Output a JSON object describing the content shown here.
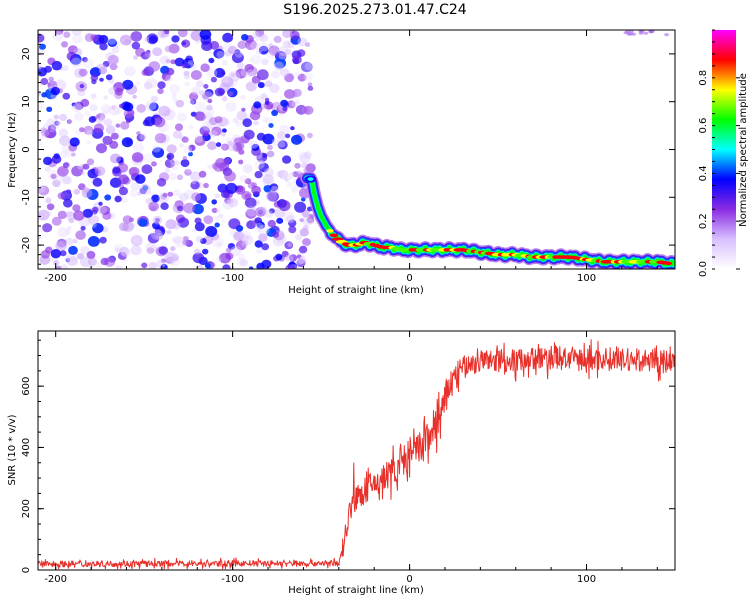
{
  "title": "S196.2025.273.01.47.C24",
  "chart_data": [
    {
      "type": "heatmap",
      "name": "spectrogram",
      "xlabel": "Height of straight line (km)",
      "ylabel": "Frequency (Hz)",
      "xlim": [
        -210,
        150
      ],
      "ylim": [
        -25,
        25
      ],
      "xticks": [
        "-200",
        "-100",
        "0",
        "100"
      ],
      "yticks": [
        "20",
        "10",
        "0",
        "-10",
        "-20"
      ],
      "noise_region_x": [
        -210,
        -55
      ],
      "noise_max_amplitude": 0.35,
      "trace": {
        "x": [
          -58,
          -57,
          -56,
          -55,
          -54,
          -52,
          -50,
          -47,
          -44,
          -40,
          -35,
          -30,
          -25,
          -20,
          -15,
          -10,
          -5,
          0,
          10,
          20,
          30,
          40,
          50,
          60,
          70,
          80,
          90,
          100,
          110,
          120,
          130,
          140,
          150
        ],
        "frequency": [
          -6,
          -6,
          -6,
          -7,
          -9,
          -12,
          -14,
          -16,
          -17.5,
          -19,
          -20,
          -20,
          -19.5,
          -20,
          -20.5,
          -20.5,
          -21,
          -21,
          -21,
          -21,
          -21,
          -21.5,
          -22,
          -22,
          -22.5,
          -22.5,
          -22.5,
          -23,
          -23.5,
          -23.5,
          -23.5,
          -23.5,
          -24
        ]
      },
      "colorbar": {
        "label": "Normalized spectral amplitude",
        "range": [
          0,
          1
        ],
        "ticks": [
          "0.0",
          "0.2",
          "0.4",
          "0.6",
          "0.8"
        ],
        "colors": [
          "#ffffff",
          "#d8bfff",
          "#8a2be2",
          "#0000ff",
          "#00ffff",
          "#00ff00",
          "#ffff00",
          "#ff0000",
          "#ff00ff"
        ]
      }
    },
    {
      "type": "line",
      "name": "snr",
      "xlabel": "Height of straight line (km)",
      "ylabel": "SNR (10 * v/v)",
      "xlim": [
        -210,
        150
      ],
      "ylim": [
        0,
        780
      ],
      "xticks": [
        "-200",
        "-100",
        "0",
        "100"
      ],
      "yticks": [
        "0",
        "200",
        "400",
        "600"
      ],
      "color": "#e8302a",
      "envelope": {
        "x": [
          -210,
          -40,
          -38,
          -36,
          -34,
          -30,
          -25,
          -20,
          -15,
          -10,
          -5,
          0,
          5,
          10,
          15,
          20,
          22,
          25,
          30,
          40,
          50,
          60,
          70,
          80,
          90,
          100,
          110,
          120,
          130,
          140,
          150
        ],
        "y": [
          20,
          22,
          60,
          130,
          190,
          230,
          260,
          280,
          300,
          320,
          350,
          370,
          390,
          430,
          480,
          540,
          600,
          630,
          660,
          680,
          685,
          685,
          690,
          690,
          690,
          685,
          690,
          685,
          685,
          680,
          680
        ]
      }
    }
  ]
}
